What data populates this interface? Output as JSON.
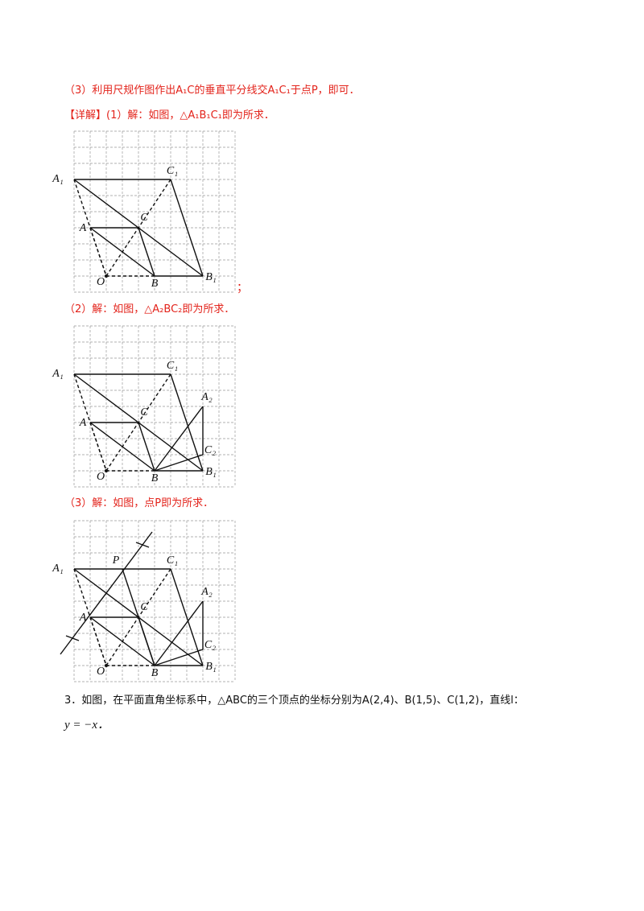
{
  "lines": [
    "（3）利用尺规作图作出A₁C的垂直平分线交A₁C₁于点P，即可．",
    "【详解】(1）解：如图，△A₁B₁C₁即为所求．",
    "（2）解：如图，△A₂BC₂即为所求．",
    "（3）解：如图，点P即为所求．",
    "3．如图，在平面直角坐标系中，△ABC的三个顶点的坐标分别为A(2,4)、B(1,5)、C(1,2)，直线l：",
    "y = −x．"
  ],
  "figures": [
    {
      "labels": [
        "A₁",
        "C₁",
        "A",
        "C",
        "O",
        "B",
        "B₁"
      ],
      "suffix": "；"
    },
    {
      "labels": [
        "A₁",
        "C₁",
        "A",
        "C",
        "O",
        "B",
        "B₁",
        "A₂",
        "C₂"
      ]
    },
    {
      "labels": [
        "A₁",
        "C₁",
        "A",
        "C",
        "O",
        "B",
        "B₁",
        "A₂",
        "C₂",
        "P"
      ]
    }
  ]
}
